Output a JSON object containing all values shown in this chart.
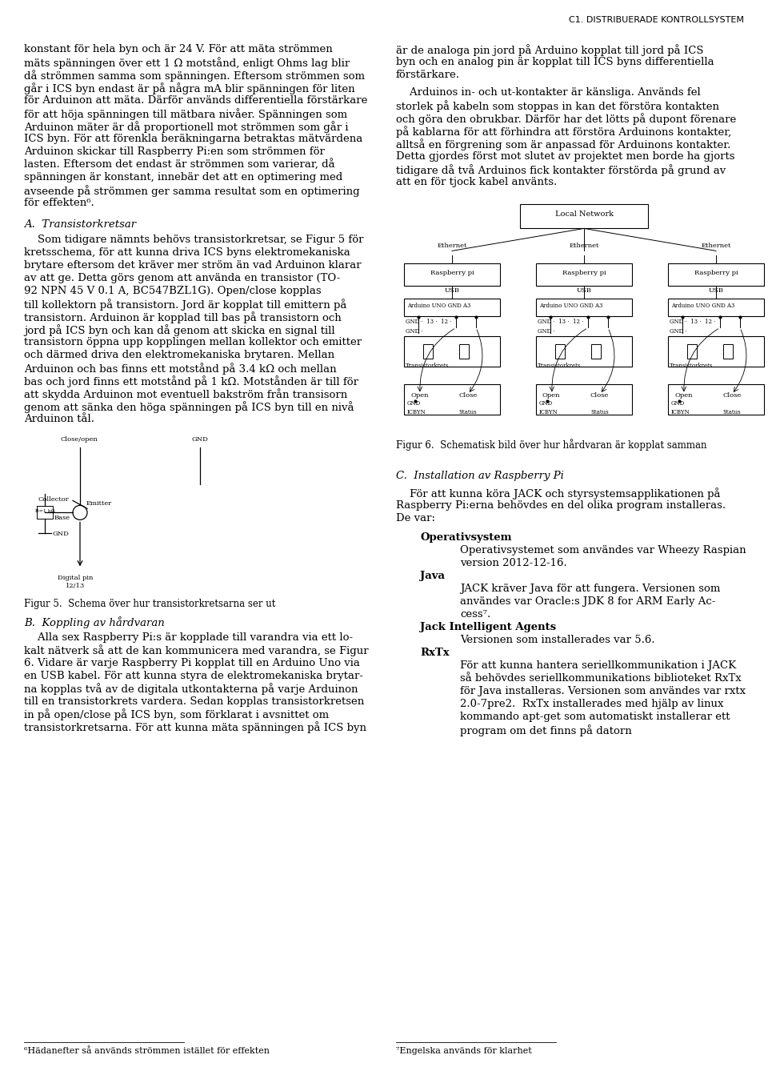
{
  "page_header": "C1. DISTRIBUERADE KONTROLLSYSTEM",
  "col1_lines": [
    "konstant för hela byn och är 24 V. För att mäta strömmen",
    "mäts spänningen över ett 1 Ω motstånd, enligt Ohms lag blir",
    "då strömmen samma som spänningen. Eftersom strömmen som",
    "går i ICS byn endast är på några mA blir spänningen för liten",
    "för Arduinon att mäta. Därför används differentiella förstärkare",
    "för att höja spänningen till mätbara nivåer. Spänningen som",
    "Arduinon mäter är då proportionell mot strömmen som går i",
    "ICS byn. För att förenkla beräkningarna betraktas mätvärdena",
    "Arduinon skickar till Raspberry Pi:en som strömmen för",
    "lasten. Eftersom det endast är strömmen som varierar, då",
    "spänningen är konstant, innebär det att en optimering med",
    "avseende på strömmen ger samma resultat som en optimering",
    "för effekten⁶."
  ],
  "col2_para1": [
    "är de analoga pin jord på Arduino kopplat till jord på ICS",
    "byn och en analog pin är kopplat till ICS byns differentiella",
    "förstärkare."
  ],
  "col2_para2": [
    "    Arduinos in- och ut-kontakter är känsliga. Används fel",
    "storlek på kabeln som stoppas in kan det förstöra kontakten",
    "och göra den obrukbar. Därför har det lötts på dupont förenare",
    "på kablarna för att förhindra att förstöra Arduinons kontakter,",
    "alltså en förgrening som är anpassad för Arduinons kontakter.",
    "Detta gjordes först mot slutet av projektet men borde ha gjorts",
    "tidigare då två Arduinos fick kontakter förstörda på grund av",
    "att en för tjock kabel använts."
  ],
  "section_A_title": "A.  Transistorkretsar",
  "section_A_lines": [
    "    Som tidigare nämnts behövs transistorkretsar, se Figur 5 för",
    "kretsschema, för att kunna driva ICS byns elektromekaniska",
    "brytare eftersom det kräver mer ström än vad Arduinon klarar",
    "av att ge. Detta görs genom att använda en transistor (TO-",
    "92 NPN 45 V 0.1 A, BC547BZL1G). Open/close kopplas",
    "till kollektorn på transistorn. Jord är kopplat till emittern på",
    "transistorn. Arduinon är kopplad till bas på transistorn och",
    "jord på ICS byn och kan då genom att skicka en signal till",
    "transistorn öppna upp kopplingen mellan kollektor och emitter",
    "och därmed driva den elektromekaniska brytaren. Mellan",
    "Arduinon och bas finns ett motstånd på 3.4 kΩ och mellan",
    "bas och jord finns ett motstånd på 1 kΩ. Motstånden är till för",
    "att skydda Arduinon mot eventuell bakström från transisorn",
    "genom att sänka den höga spänningen på ICS byn till en nivå",
    "Arduinon tål."
  ],
  "fig5_caption": "Figur 5.  Schema över hur transistorkretsarna ser ut",
  "section_B_title": "B.  Koppling av hårdvaran",
  "section_B_lines": [
    "    Alla sex Raspberry Pi:s är kopplade till varandra via ett lo-",
    "kalt nätverk så att de kan kommunicera med varandra, se Figur",
    "6. Vidare är varje Raspberry Pi kopplat till en Arduino Uno via",
    "en USB kabel. För att kunna styra de elektromekaniska brytar-",
    "na kopplas två av de digitala utkontakterna på varje Arduinon",
    "till en transistorkrets vardera. Sedan kopplas transistorkretsen",
    "in på open/close på ICS byn, som förklarat i avsnittet om",
    "transistorkretsarna. För att kunna mäta spänningen på ICS byn"
  ],
  "fig6_caption": "Figur 6.  Schematisk bild över hur hårdvaran är kopplat samman",
  "section_C_title": "C.  Installation av Raspberry Pi",
  "section_C_intro": [
    "    För att kunna köra JACK och styrsystemsapplikationen på",
    "Raspberry Pi:erna behövdes en del olika program installeras.",
    "De var:"
  ],
  "subsection_OS_title": "Operativsystem",
  "subsection_OS_lines": [
    "Operativsystemet som användes var Wheezy Raspian",
    "version 2012-12-16."
  ],
  "subsection_Java_title": "Java",
  "subsection_Java_lines": [
    "JACK kräver Java för att fungera. Versionen som",
    "användes var Oracle:s JDK 8 for ARM Early Ac-",
    "cess⁷."
  ],
  "subsection_Jack_title": "Jack Intelligent Agents",
  "subsection_Jack_lines": [
    "Versionen som installerades var 5.6."
  ],
  "subsection_RxTx_title": "RxTx",
  "subsection_RxTx_lines": [
    "För att kunna hantera seriellkommunikation i JACK",
    "så behövdes seriellkommunikations biblioteket RxTx",
    "för Java installeras. Versionen som användes var rxtx",
    "2.0-7pre2.  RxTx installerades med hjälp av linux",
    "kommando apt-get som automatiskt installerar ett",
    "program om det finns på datorn"
  ],
  "footnote6": "⁶Hädanefter så används strömmen istället för effekten",
  "footnote7": "⁷Engelska används för klarhet",
  "bg_color": "#ffffff",
  "text_color": "#000000",
  "font_size_body": 9.5,
  "font_size_caption": 8.5,
  "font_size_header": 8.0,
  "font_size_footnote": 8.0,
  "font_size_section_title": 9.5,
  "font_size_diagram": 6.0,
  "font_size_diagram_sm": 5.0
}
